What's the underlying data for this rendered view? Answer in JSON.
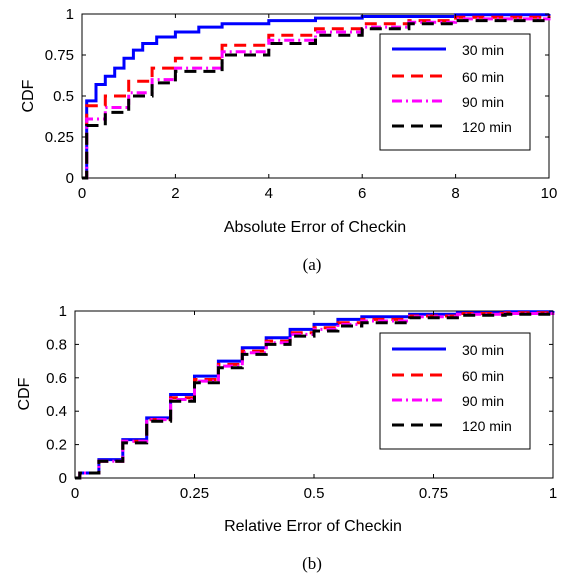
{
  "chart_data": [
    {
      "type": "line",
      "title": "",
      "xlabel": "Absolute Error of Checkin",
      "ylabel": "CDF",
      "caption": "(a)",
      "xlim": [
        0,
        10
      ],
      "ylim": [
        0,
        1
      ],
      "xticks": [
        0,
        2,
        4,
        6,
        8,
        10
      ],
      "xtick_labels": [
        "0",
        "2",
        "4",
        "6",
        "8",
        "10"
      ],
      "yticks": [
        0,
        0.25,
        0.5,
        0.75,
        1
      ],
      "ytick_labels": [
        "0",
        "0.25",
        "0.5",
        "0.75",
        "1"
      ],
      "grid": false,
      "legend_position": "top-right",
      "series": [
        {
          "name": "30 min",
          "color": "#0000ff",
          "dash": "solid",
          "x": [
            0,
            0.1,
            0.3,
            0.5,
            0.7,
            0.9,
            1.1,
            1.3,
            1.6,
            2.0,
            2.5,
            3.0,
            4.0,
            5.0,
            6.0,
            8.0,
            10.0
          ],
          "y": [
            0,
            0.47,
            0.57,
            0.62,
            0.67,
            0.73,
            0.78,
            0.82,
            0.86,
            0.89,
            0.92,
            0.94,
            0.96,
            0.975,
            0.985,
            0.995,
            1.0
          ]
        },
        {
          "name": "60 min",
          "color": "#ff0000",
          "dash": "dashed",
          "x": [
            0,
            0.1,
            0.5,
            1.0,
            1.5,
            2.0,
            3.0,
            4.0,
            5.0,
            6.0,
            7.0,
            8.0,
            10.0
          ],
          "y": [
            0,
            0.44,
            0.5,
            0.59,
            0.67,
            0.73,
            0.81,
            0.87,
            0.91,
            0.94,
            0.96,
            0.98,
            0.99
          ]
        },
        {
          "name": "90 min",
          "color": "#ff00ff",
          "dash": "dashdot",
          "x": [
            0,
            0.1,
            0.5,
            1.0,
            1.5,
            2.0,
            3.0,
            4.0,
            5.0,
            6.0,
            7.0,
            8.0,
            10.0
          ],
          "y": [
            0,
            0.36,
            0.43,
            0.52,
            0.6,
            0.67,
            0.77,
            0.84,
            0.89,
            0.92,
            0.95,
            0.97,
            0.98
          ]
        },
        {
          "name": "120 min",
          "color": "#000000",
          "dash": "dashed",
          "x": [
            0,
            0.1,
            0.5,
            1.0,
            1.5,
            2.0,
            3.0,
            4.0,
            5.0,
            6.0,
            7.0,
            8.0,
            10.0
          ],
          "y": [
            0,
            0.32,
            0.4,
            0.5,
            0.58,
            0.65,
            0.75,
            0.82,
            0.87,
            0.91,
            0.94,
            0.96,
            0.98
          ]
        }
      ]
    },
    {
      "type": "line",
      "title": "",
      "xlabel": "Relative Error of Checkin",
      "ylabel": "CDF",
      "caption": "(b)",
      "xlim": [
        0,
        1
      ],
      "ylim": [
        0,
        1
      ],
      "xticks": [
        0,
        0.25,
        0.5,
        0.75,
        1
      ],
      "xtick_labels": [
        "0",
        "0.25",
        "0.5",
        "0.75",
        "1"
      ],
      "yticks": [
        0,
        0.2,
        0.4,
        0.6,
        0.8,
        1
      ],
      "ytick_labels": [
        "0",
        "0.2",
        "0.4",
        "0.6",
        "0.8",
        "1"
      ],
      "grid": false,
      "legend_position": "top-right",
      "series": [
        {
          "name": "30 min",
          "color": "#0000ff",
          "dash": "solid",
          "x": [
            0,
            0.01,
            0.05,
            0.1,
            0.15,
            0.2,
            0.25,
            0.3,
            0.35,
            0.4,
            0.45,
            0.5,
            0.55,
            0.6,
            0.7,
            0.8,
            0.9,
            1.0
          ],
          "y": [
            0,
            0.03,
            0.11,
            0.23,
            0.36,
            0.5,
            0.61,
            0.7,
            0.78,
            0.84,
            0.89,
            0.92,
            0.95,
            0.965,
            0.98,
            0.99,
            0.995,
            1.0
          ]
        },
        {
          "name": "60 min",
          "color": "#ff0000",
          "dash": "dashed",
          "x": [
            0,
            0.01,
            0.05,
            0.1,
            0.15,
            0.2,
            0.25,
            0.3,
            0.35,
            0.4,
            0.45,
            0.5,
            0.55,
            0.6,
            0.7,
            0.8,
            0.9,
            1.0
          ],
          "y": [
            0,
            0.03,
            0.1,
            0.22,
            0.35,
            0.48,
            0.59,
            0.68,
            0.76,
            0.82,
            0.87,
            0.9,
            0.93,
            0.95,
            0.97,
            0.985,
            0.99,
            0.995
          ]
        },
        {
          "name": "90 min",
          "color": "#ff00ff",
          "dash": "dashdot",
          "x": [
            0,
            0.01,
            0.05,
            0.1,
            0.15,
            0.2,
            0.25,
            0.3,
            0.35,
            0.4,
            0.45,
            0.5,
            0.55,
            0.6,
            0.7,
            0.8,
            0.9,
            1.0
          ],
          "y": [
            0,
            0.03,
            0.1,
            0.22,
            0.35,
            0.47,
            0.58,
            0.67,
            0.75,
            0.81,
            0.86,
            0.89,
            0.92,
            0.94,
            0.965,
            0.98,
            0.985,
            0.99
          ]
        },
        {
          "name": "120 min",
          "color": "#000000",
          "dash": "dashed",
          "x": [
            0,
            0.01,
            0.05,
            0.1,
            0.15,
            0.2,
            0.25,
            0.3,
            0.35,
            0.4,
            0.45,
            0.5,
            0.55,
            0.6,
            0.7,
            0.8,
            0.9,
            1.0
          ],
          "y": [
            0,
            0.03,
            0.1,
            0.21,
            0.34,
            0.46,
            0.57,
            0.66,
            0.74,
            0.8,
            0.85,
            0.88,
            0.91,
            0.93,
            0.96,
            0.975,
            0.98,
            0.985
          ]
        }
      ]
    }
  ]
}
